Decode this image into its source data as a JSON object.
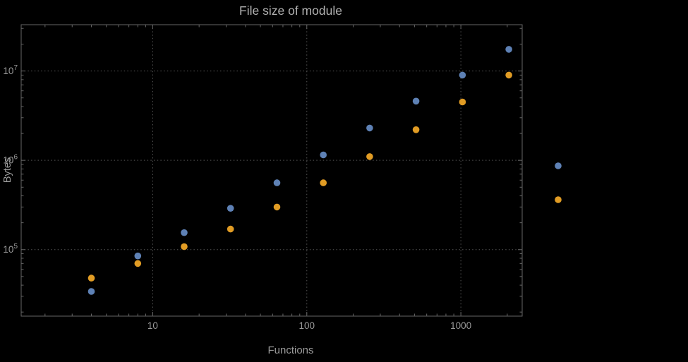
{
  "chart_data": {
    "type": "scatter",
    "scale": "log-log",
    "title": "File size of module",
    "xlabel": "Functions",
    "ylabel": "Bytes",
    "x": [
      4,
      8,
      16,
      32,
      64,
      128,
      256,
      512,
      1024,
      2048
    ],
    "series": [
      {
        "name": "blue",
        "color": "#5e81b5",
        "values": [
          34000,
          85000,
          155000,
          290000,
          560000,
          1150000,
          2300000,
          4600000,
          9000000,
          17500000
        ]
      },
      {
        "name": "orange",
        "color": "#e19c24",
        "values": [
          48000,
          70000,
          108000,
          170000,
          300000,
          560000,
          1100000,
          2200000,
          4500000,
          9000000
        ]
      }
    ],
    "x_ticks": [
      10,
      100,
      1000
    ],
    "y_ticks": [
      {
        "base": "10",
        "exp": 5
      },
      {
        "base": "10",
        "exp": 6
      },
      {
        "base": "10",
        "exp": 7
      }
    ],
    "xlim": [
      1.4,
      2500
    ],
    "ylim": [
      18000,
      33000000
    ],
    "grid": "dotted-major",
    "legend": {
      "position": "right-outside",
      "markers": [
        {
          "name": "blue",
          "color": "#5e81b5"
        },
        {
          "name": "orange",
          "color": "#e19c24"
        }
      ]
    },
    "colors": {
      "background": "#000000",
      "frame": "#666666",
      "grid": "#575757",
      "tick_label": "#9b9b9b",
      "axis_label": "#9b9b9b",
      "title": "#b2b2b2"
    }
  }
}
